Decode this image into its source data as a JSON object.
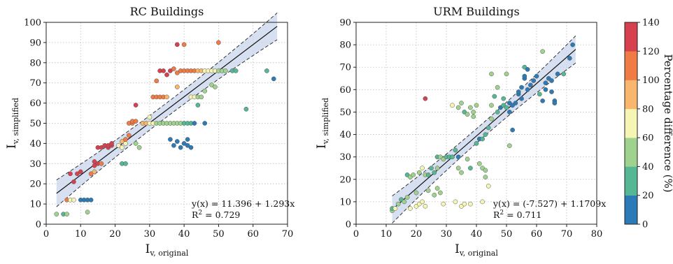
{
  "colorbar": {
    "label": "Percentage difference (%)",
    "ticks": [
      0,
      20,
      40,
      60,
      80,
      100,
      120,
      140
    ],
    "range": [
      0,
      140
    ],
    "colors": [
      "#2c7bb6",
      "#55b794",
      "#9fd28d",
      "#f7f5b4",
      "#f9b66d",
      "#f07b45",
      "#d7404e"
    ]
  },
  "chart_data": [
    {
      "type": "scatter",
      "title": "RC Buildings",
      "ylabel_main": "I",
      "ylabel_sub": "v, simplified",
      "xlabel_main": "I",
      "xlabel_sub": "v, original",
      "xlim": [
        0,
        70
      ],
      "ylim": [
        0,
        100
      ],
      "xticks": [
        0,
        10,
        20,
        30,
        40,
        50,
        60,
        70
      ],
      "yticks": [
        0,
        10,
        20,
        30,
        40,
        50,
        60,
        70,
        80,
        90,
        100
      ],
      "grid": true,
      "fit": {
        "intercept": 11.396,
        "slope": 1.293,
        "band": 3.5,
        "x_range": [
          3,
          67
        ]
      },
      "equation": "y(x) = 11.396 + 1.293x",
      "r2_label": "R",
      "r2_sup": "2",
      "r2_value": " = 0.729",
      "points": [
        [
          3,
          5,
          40
        ],
        [
          5,
          5,
          20
        ],
        [
          6,
          5,
          40
        ],
        [
          6,
          12,
          100
        ],
        [
          7,
          12,
          60
        ],
        [
          8,
          12,
          60
        ],
        [
          10,
          12,
          0
        ],
        [
          11,
          12,
          0
        ],
        [
          12,
          12,
          0
        ],
        [
          13,
          12,
          0
        ],
        [
          12,
          6,
          40
        ],
        [
          7,
          25,
          120
        ],
        [
          8,
          21,
          120
        ],
        [
          9,
          25,
          120
        ],
        [
          10,
          26,
          120
        ],
        [
          13,
          25,
          100
        ],
        [
          14,
          26,
          80
        ],
        [
          14,
          29,
          120
        ],
        [
          14,
          31,
          120
        ],
        [
          15,
          30,
          120
        ],
        [
          16,
          30,
          100
        ],
        [
          15,
          38,
          120
        ],
        [
          16,
          38,
          120
        ],
        [
          17,
          39,
          120
        ],
        [
          18,
          38,
          120
        ],
        [
          18,
          39,
          120
        ],
        [
          19,
          39,
          120
        ],
        [
          19,
          40,
          120
        ],
        [
          21,
          39,
          60
        ],
        [
          22,
          38,
          60
        ],
        [
          22,
          41,
          80
        ],
        [
          23,
          40,
          60
        ],
        [
          23,
          42,
          100
        ],
        [
          24,
          44,
          100
        ],
        [
          22,
          30,
          20
        ],
        [
          23,
          30,
          20
        ],
        [
          24,
          50,
          110
        ],
        [
          25,
          50,
          110
        ],
        [
          25,
          51,
          110
        ],
        [
          26,
          51,
          110
        ],
        [
          26,
          59,
          120
        ],
        [
          26,
          40,
          40
        ],
        [
          27,
          38,
          40
        ],
        [
          28,
          50,
          80
        ],
        [
          29,
          50,
          80
        ],
        [
          30,
          50,
          60
        ],
        [
          30,
          53,
          60
        ],
        [
          31,
          50,
          60
        ],
        [
          32,
          50,
          50
        ],
        [
          33,
          50,
          40
        ],
        [
          34,
          50,
          40
        ],
        [
          35,
          50,
          40
        ],
        [
          36,
          50,
          40
        ],
        [
          37,
          50,
          40
        ],
        [
          38,
          50,
          40
        ],
        [
          39,
          50,
          40
        ],
        [
          40,
          50,
          20
        ],
        [
          41,
          50,
          20
        ],
        [
          42,
          50,
          20
        ],
        [
          43,
          50,
          0
        ],
        [
          46,
          50,
          0
        ],
        [
          31,
          63,
          100
        ],
        [
          32,
          63,
          100
        ],
        [
          33,
          63,
          100
        ],
        [
          34,
          63,
          100
        ],
        [
          35,
          63,
          80
        ],
        [
          32,
          71,
          100
        ],
        [
          33,
          76,
          120
        ],
        [
          34,
          76,
          120
        ],
        [
          35,
          74,
          120
        ],
        [
          36,
          76,
          120
        ],
        [
          37,
          77,
          110
        ],
        [
          38,
          75,
          100
        ],
        [
          39,
          76,
          100
        ],
        [
          40,
          76,
          100
        ],
        [
          41,
          76,
          100
        ],
        [
          42,
          76,
          100
        ],
        [
          43,
          76,
          100
        ],
        [
          44,
          76,
          80
        ],
        [
          45,
          76,
          80
        ],
        [
          46,
          76,
          70
        ],
        [
          47,
          76,
          60
        ],
        [
          48,
          76,
          60
        ],
        [
          49,
          76,
          60
        ],
        [
          50,
          76,
          40
        ],
        [
          51,
          76,
          40
        ],
        [
          52,
          76,
          40
        ],
        [
          54,
          76,
          20
        ],
        [
          55,
          76,
          20
        ],
        [
          38,
          68,
          80
        ],
        [
          42,
          63,
          60
        ],
        [
          43,
          63,
          60
        ],
        [
          44,
          63,
          40
        ],
        [
          45,
          63,
          40
        ],
        [
          44,
          59,
          20
        ],
        [
          46,
          66,
          40
        ],
        [
          48,
          69,
          40
        ],
        [
          49,
          68,
          40
        ],
        [
          38,
          89,
          120
        ],
        [
          40,
          89,
          110
        ],
        [
          50,
          90,
          100
        ],
        [
          36,
          42,
          0
        ],
        [
          37,
          39,
          0
        ],
        [
          38,
          41,
          0
        ],
        [
          39,
          38,
          0
        ],
        [
          40,
          40,
          0
        ],
        [
          41,
          42,
          0
        ],
        [
          41,
          39,
          0
        ],
        [
          42,
          38,
          0
        ],
        [
          64,
          76,
          20
        ],
        [
          66,
          72,
          0
        ],
        [
          58,
          57,
          20
        ]
      ]
    },
    {
      "type": "scatter",
      "title": "URM Buildings",
      "ylabel_main": "I",
      "ylabel_sub": "v, simplified",
      "xlabel_main": "I",
      "xlabel_sub": "v, original",
      "xlim": [
        0,
        80
      ],
      "ylim": [
        0,
        90
      ],
      "xticks": [
        0,
        10,
        20,
        30,
        40,
        50,
        60,
        70,
        80
      ],
      "yticks": [
        0,
        10,
        20,
        30,
        40,
        50,
        60,
        70,
        80,
        90
      ],
      "grid": true,
      "fit": {
        "intercept": -7.527,
        "slope": 1.1709,
        "band": 3.2,
        "x_range": [
          12,
          73
        ]
      },
      "equation": "y(x) = (-7.527) + 1.1709x",
      "r2_label": "R",
      "r2_sup": "2",
      "r2_value": " = 0.711",
      "points": [
        [
          12,
          6,
          40
        ],
        [
          12,
          7,
          20
        ],
        [
          13,
          7,
          60
        ],
        [
          14,
          9,
          40
        ],
        [
          15,
          11,
          20
        ],
        [
          16,
          10,
          40
        ],
        [
          17,
          12,
          40
        ],
        [
          17,
          22,
          20
        ],
        [
          18,
          21,
          40
        ],
        [
          19,
          22,
          40
        ],
        [
          21,
          23,
          40
        ],
        [
          22,
          25,
          60
        ],
        [
          20,
          14,
          40
        ],
        [
          23,
          22,
          40
        ],
        [
          24,
          22,
          20
        ],
        [
          25,
          25,
          20
        ],
        [
          26,
          23,
          20
        ],
        [
          27,
          25,
          40
        ],
        [
          27,
          30,
          20
        ],
        [
          28,
          30,
          40
        ],
        [
          29,
          29,
          40
        ],
        [
          30,
          30,
          20
        ],
        [
          31,
          30,
          20
        ],
        [
          32,
          30,
          20
        ],
        [
          33,
          33,
          20
        ],
        [
          34,
          30,
          0
        ],
        [
          24,
          15,
          40
        ],
        [
          26,
          13,
          40
        ],
        [
          27,
          16,
          40
        ],
        [
          28,
          14,
          40
        ],
        [
          29,
          9,
          60
        ],
        [
          18,
          7,
          60
        ],
        [
          20,
          8,
          60
        ],
        [
          21,
          9,
          60
        ],
        [
          22,
          10,
          60
        ],
        [
          23,
          8,
          60
        ],
        [
          23,
          56,
          120
        ],
        [
          32,
          53,
          60
        ],
        [
          34,
          52,
          40
        ],
        [
          35,
          54,
          40
        ],
        [
          36,
          50,
          20
        ],
        [
          37,
          49,
          40
        ],
        [
          38,
          52,
          40
        ],
        [
          39,
          50,
          40
        ],
        [
          40,
          53,
          40
        ],
        [
          39,
          48,
          40
        ],
        [
          34,
          25,
          40
        ],
        [
          35,
          23,
          40
        ],
        [
          37,
          29,
          40
        ],
        [
          38,
          25,
          20
        ],
        [
          41,
          27,
          40
        ],
        [
          42,
          25,
          40
        ],
        [
          43,
          21,
          40
        ],
        [
          44,
          17,
          60
        ],
        [
          43,
          24,
          40
        ],
        [
          33,
          10,
          60
        ],
        [
          35,
          8,
          60
        ],
        [
          36,
          9,
          60
        ],
        [
          38,
          9,
          60
        ],
        [
          42,
          10,
          60
        ],
        [
          40,
          36,
          20
        ],
        [
          41,
          38,
          0
        ],
        [
          42,
          38,
          20
        ],
        [
          43,
          40,
          20
        ],
        [
          44,
          43,
          20
        ],
        [
          45,
          47,
          40
        ],
        [
          45,
          53,
          40
        ],
        [
          46,
          57,
          20
        ],
        [
          47,
          50,
          20
        ],
        [
          48,
          52,
          0
        ],
        [
          49,
          53,
          20
        ],
        [
          50,
          52,
          20
        ],
        [
          45,
          67,
          40
        ],
        [
          47,
          61,
          40
        ],
        [
          49,
          56,
          20
        ],
        [
          50,
          67,
          40
        ],
        [
          51,
          50,
          0
        ],
        [
          51,
          54,
          0
        ],
        [
          51,
          35,
          40
        ],
        [
          52,
          42,
          0
        ],
        [
          52,
          53,
          0
        ],
        [
          53,
          54,
          0
        ],
        [
          54,
          58,
          0
        ],
        [
          54,
          59,
          0
        ],
        [
          55,
          56,
          0
        ],
        [
          55,
          61,
          0
        ],
        [
          56,
          65,
          0
        ],
        [
          56,
          66,
          0
        ],
        [
          56,
          70,
          20
        ],
        [
          57,
          60,
          0
        ],
        [
          58,
          62,
          0
        ],
        [
          59,
          64,
          0
        ],
        [
          60,
          66,
          0
        ],
        [
          61,
          58,
          20
        ],
        [
          62,
          77,
          40
        ],
        [
          62,
          55,
          0
        ],
        [
          63,
          60,
          0
        ],
        [
          63,
          63,
          0
        ],
        [
          64,
          65,
          0
        ],
        [
          65,
          64,
          0
        ],
        [
          65,
          59,
          0
        ],
        [
          66,
          55,
          0
        ],
        [
          66,
          54,
          0
        ],
        [
          67,
          67,
          0
        ],
        [
          69,
          67,
          20
        ],
        [
          71,
          74,
          0
        ],
        [
          72,
          80,
          0
        ],
        [
          57,
          69,
          0
        ]
      ]
    }
  ]
}
